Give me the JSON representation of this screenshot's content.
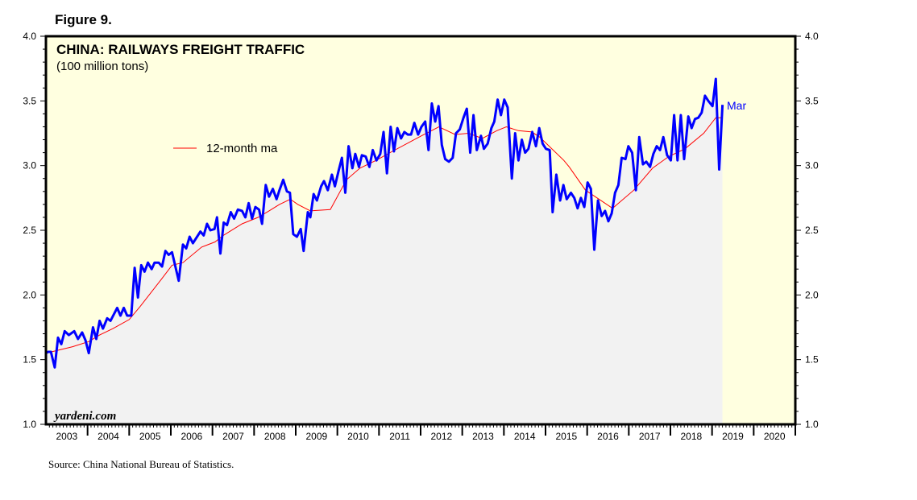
{
  "figure_label": "Figure 9.",
  "source": "Source: China National Bureau of Statistics.",
  "watermark": "yardeni.com",
  "colors": {
    "background": "#ffffe0",
    "area": "#f2f2f2",
    "series": "#0000ff",
    "ma": "#ff0000"
  },
  "chart_data": {
    "type": "line",
    "title": "CHINA: RAILWAYS FREIGHT TRAFFIC",
    "subtitle": "(100 million tons)",
    "xlabel": "",
    "ylabel": "",
    "xlim": [
      2003,
      2021
    ],
    "ylim": [
      1.0,
      4.0
    ],
    "y_ticks": [
      "1.0",
      "1.5",
      "2.0",
      "2.5",
      "3.0",
      "3.5",
      "4.0"
    ],
    "x_tick_labels": [
      "2003",
      "2004",
      "2005",
      "2006",
      "2007",
      "2008",
      "2009",
      "2010",
      "2011",
      "2012",
      "2013",
      "2014",
      "2015",
      "2016",
      "2017",
      "2018",
      "2019",
      "2020"
    ],
    "grid": false,
    "legend": {
      "placement": "upper-left",
      "entries": [
        "12-month ma"
      ]
    },
    "end_annotation": "Mar",
    "series": [
      {
        "name": "Railways freight traffic",
        "x_unit": "decimal year",
        "points": [
          [
            2003.0,
            1.55
          ],
          [
            2003.05,
            1.56
          ],
          [
            2003.12,
            1.56
          ],
          [
            2003.21,
            1.44
          ],
          [
            2003.29,
            1.67
          ],
          [
            2003.37,
            1.62
          ],
          [
            2003.45,
            1.72
          ],
          [
            2003.55,
            1.69
          ],
          [
            2003.68,
            1.72
          ],
          [
            2003.77,
            1.66
          ],
          [
            2003.87,
            1.71
          ],
          [
            2003.95,
            1.65
          ],
          [
            2004.03,
            1.55
          ],
          [
            2004.13,
            1.75
          ],
          [
            2004.21,
            1.66
          ],
          [
            2004.29,
            1.8
          ],
          [
            2004.37,
            1.74
          ],
          [
            2004.47,
            1.82
          ],
          [
            2004.55,
            1.8
          ],
          [
            2004.71,
            1.9
          ],
          [
            2004.79,
            1.84
          ],
          [
            2004.87,
            1.9
          ],
          [
            2004.95,
            1.84
          ],
          [
            2005.05,
            1.84
          ],
          [
            2005.13,
            2.21
          ],
          [
            2005.21,
            1.98
          ],
          [
            2005.29,
            2.23
          ],
          [
            2005.37,
            2.18
          ],
          [
            2005.45,
            2.25
          ],
          [
            2005.54,
            2.2
          ],
          [
            2005.61,
            2.25
          ],
          [
            2005.71,
            2.25
          ],
          [
            2005.79,
            2.22
          ],
          [
            2005.87,
            2.34
          ],
          [
            2005.95,
            2.31
          ],
          [
            2006.03,
            2.33
          ],
          [
            2006.19,
            2.11
          ],
          [
            2006.29,
            2.39
          ],
          [
            2006.37,
            2.36
          ],
          [
            2006.45,
            2.45
          ],
          [
            2006.53,
            2.4
          ],
          [
            2006.71,
            2.49
          ],
          [
            2006.79,
            2.46
          ],
          [
            2006.87,
            2.55
          ],
          [
            2006.95,
            2.5
          ],
          [
            2007.05,
            2.51
          ],
          [
            2007.11,
            2.6
          ],
          [
            2007.19,
            2.32
          ],
          [
            2007.27,
            2.56
          ],
          [
            2007.35,
            2.54
          ],
          [
            2007.44,
            2.64
          ],
          [
            2007.52,
            2.59
          ],
          [
            2007.61,
            2.66
          ],
          [
            2007.71,
            2.65
          ],
          [
            2007.79,
            2.6
          ],
          [
            2007.87,
            2.71
          ],
          [
            2007.95,
            2.59
          ],
          [
            2008.03,
            2.68
          ],
          [
            2008.12,
            2.66
          ],
          [
            2008.19,
            2.55
          ],
          [
            2008.28,
            2.85
          ],
          [
            2008.36,
            2.76
          ],
          [
            2008.45,
            2.82
          ],
          [
            2008.54,
            2.74
          ],
          [
            2008.61,
            2.81
          ],
          [
            2008.7,
            2.89
          ],
          [
            2008.79,
            2.8
          ],
          [
            2008.86,
            2.79
          ],
          [
            2008.94,
            2.47
          ],
          [
            2009.03,
            2.45
          ],
          [
            2009.12,
            2.51
          ],
          [
            2009.19,
            2.34
          ],
          [
            2009.29,
            2.64
          ],
          [
            2009.35,
            2.6
          ],
          [
            2009.43,
            2.78
          ],
          [
            2009.51,
            2.73
          ],
          [
            2009.61,
            2.84
          ],
          [
            2009.68,
            2.88
          ],
          [
            2009.77,
            2.81
          ],
          [
            2009.87,
            2.93
          ],
          [
            2009.94,
            2.84
          ],
          [
            2010.03,
            2.96
          ],
          [
            2010.11,
            3.06
          ],
          [
            2010.19,
            2.79
          ],
          [
            2010.27,
            3.15
          ],
          [
            2010.36,
            2.98
          ],
          [
            2010.43,
            3.09
          ],
          [
            2010.52,
            2.99
          ],
          [
            2010.59,
            3.08
          ],
          [
            2010.68,
            3.07
          ],
          [
            2010.77,
            2.99
          ],
          [
            2010.85,
            3.12
          ],
          [
            2010.94,
            3.04
          ],
          [
            2011.03,
            3.09
          ],
          [
            2011.11,
            3.26
          ],
          [
            2011.19,
            2.94
          ],
          [
            2011.28,
            3.3
          ],
          [
            2011.36,
            3.11
          ],
          [
            2011.44,
            3.29
          ],
          [
            2011.53,
            3.21
          ],
          [
            2011.61,
            3.26
          ],
          [
            2011.69,
            3.24
          ],
          [
            2011.77,
            3.24
          ],
          [
            2011.85,
            3.33
          ],
          [
            2011.94,
            3.24
          ],
          [
            2012.02,
            3.3
          ],
          [
            2012.11,
            3.34
          ],
          [
            2012.19,
            3.12
          ],
          [
            2012.27,
            3.48
          ],
          [
            2012.35,
            3.34
          ],
          [
            2012.43,
            3.46
          ],
          [
            2012.51,
            3.16
          ],
          [
            2012.59,
            3.05
          ],
          [
            2012.68,
            3.03
          ],
          [
            2012.77,
            3.06
          ],
          [
            2012.85,
            3.25
          ],
          [
            2012.94,
            3.28
          ],
          [
            2013.03,
            3.37
          ],
          [
            2013.11,
            3.44
          ],
          [
            2013.19,
            3.1
          ],
          [
            2013.27,
            3.39
          ],
          [
            2013.35,
            3.12
          ],
          [
            2013.45,
            3.23
          ],
          [
            2013.52,
            3.13
          ],
          [
            2013.61,
            3.17
          ],
          [
            2013.7,
            3.29
          ],
          [
            2013.77,
            3.34
          ],
          [
            2013.85,
            3.51
          ],
          [
            2013.93,
            3.39
          ],
          [
            2014.01,
            3.51
          ],
          [
            2014.09,
            3.45
          ],
          [
            2014.19,
            2.9
          ],
          [
            2014.27,
            3.25
          ],
          [
            2014.35,
            3.04
          ],
          [
            2014.43,
            3.2
          ],
          [
            2014.51,
            3.1
          ],
          [
            2014.59,
            3.13
          ],
          [
            2014.68,
            3.26
          ],
          [
            2014.77,
            3.15
          ],
          [
            2014.85,
            3.29
          ],
          [
            2014.93,
            3.17
          ],
          [
            2015.01,
            3.13
          ],
          [
            2015.1,
            3.12
          ],
          [
            2015.17,
            2.64
          ],
          [
            2015.26,
            2.93
          ],
          [
            2015.35,
            2.73
          ],
          [
            2015.43,
            2.85
          ],
          [
            2015.51,
            2.74
          ],
          [
            2015.61,
            2.79
          ],
          [
            2015.69,
            2.75
          ],
          [
            2015.77,
            2.67
          ],
          [
            2015.85,
            2.75
          ],
          [
            2015.93,
            2.68
          ],
          [
            2016.01,
            2.87
          ],
          [
            2016.09,
            2.82
          ],
          [
            2016.17,
            2.35
          ],
          [
            2016.26,
            2.73
          ],
          [
            2016.35,
            2.61
          ],
          [
            2016.43,
            2.65
          ],
          [
            2016.51,
            2.57
          ],
          [
            2016.59,
            2.63
          ],
          [
            2016.67,
            2.79
          ],
          [
            2016.75,
            2.85
          ],
          [
            2016.83,
            3.06
          ],
          [
            2016.92,
            3.05
          ],
          [
            2016.99,
            3.15
          ],
          [
            2017.08,
            3.1
          ],
          [
            2017.17,
            2.81
          ],
          [
            2017.25,
            3.22
          ],
          [
            2017.34,
            3.01
          ],
          [
            2017.42,
            3.03
          ],
          [
            2017.51,
            2.99
          ],
          [
            2017.59,
            3.09
          ],
          [
            2017.67,
            3.15
          ],
          [
            2017.75,
            3.12
          ],
          [
            2017.83,
            3.22
          ],
          [
            2017.92,
            3.08
          ],
          [
            2018.01,
            3.04
          ],
          [
            2018.09,
            3.39
          ],
          [
            2018.17,
            3.04
          ],
          [
            2018.25,
            3.39
          ],
          [
            2018.33,
            3.05
          ],
          [
            2018.43,
            3.38
          ],
          [
            2018.51,
            3.29
          ],
          [
            2018.59,
            3.36
          ],
          [
            2018.67,
            3.37
          ],
          [
            2018.75,
            3.41
          ],
          [
            2018.83,
            3.54
          ],
          [
            2018.91,
            3.5
          ],
          [
            2019.01,
            3.46
          ],
          [
            2019.09,
            3.67
          ],
          [
            2019.17,
            2.97
          ],
          [
            2019.25,
            3.47
          ]
        ]
      },
      {
        "name": "12-month ma",
        "x_unit": "decimal year",
        "points": [
          [
            2003.0,
            1.55
          ],
          [
            2003.64,
            1.6
          ],
          [
            2004.03,
            1.64
          ],
          [
            2004.29,
            1.69
          ],
          [
            2004.61,
            1.74
          ],
          [
            2005.0,
            1.81
          ],
          [
            2005.26,
            1.91
          ],
          [
            2005.77,
            2.12
          ],
          [
            2006.03,
            2.23
          ],
          [
            2006.29,
            2.25
          ],
          [
            2006.74,
            2.37
          ],
          [
            2007.06,
            2.41
          ],
          [
            2007.26,
            2.46
          ],
          [
            2007.71,
            2.55
          ],
          [
            2008.1,
            2.6
          ],
          [
            2008.36,
            2.65
          ],
          [
            2008.61,
            2.7
          ],
          [
            2008.87,
            2.74
          ],
          [
            2009.05,
            2.7
          ],
          [
            2009.35,
            2.65
          ],
          [
            2009.83,
            2.66
          ],
          [
            2010.22,
            2.89
          ],
          [
            2010.54,
            2.98
          ],
          [
            2010.93,
            3.04
          ],
          [
            2011.32,
            3.11
          ],
          [
            2012.02,
            3.23
          ],
          [
            2012.44,
            3.3
          ],
          [
            2012.83,
            3.24
          ],
          [
            2013.15,
            3.25
          ],
          [
            2013.48,
            3.21
          ],
          [
            2013.83,
            3.27
          ],
          [
            2014.06,
            3.3
          ],
          [
            2014.35,
            3.27
          ],
          [
            2014.67,
            3.26
          ],
          [
            2014.86,
            3.22
          ],
          [
            2015.44,
            3.04
          ],
          [
            2015.57,
            2.99
          ],
          [
            2015.96,
            2.81
          ],
          [
            2016.61,
            2.67
          ],
          [
            2017.12,
            2.81
          ],
          [
            2017.57,
            2.98
          ],
          [
            2017.96,
            3.07
          ],
          [
            2018.35,
            3.13
          ],
          [
            2018.8,
            3.25
          ],
          [
            2019.09,
            3.37
          ],
          [
            2019.24,
            3.37
          ]
        ]
      }
    ]
  }
}
